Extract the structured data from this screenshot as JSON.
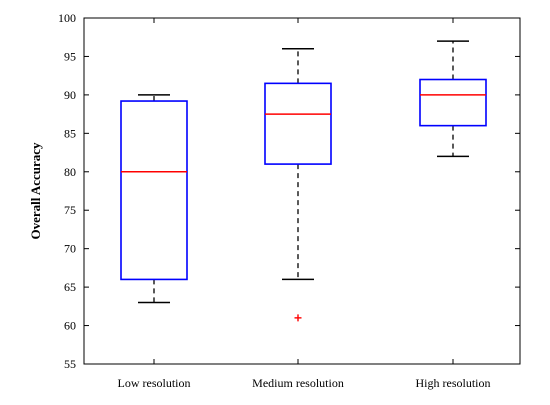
{
  "chart_data": {
    "type": "box",
    "title": "",
    "xlabel": "",
    "ylabel": "Overall Accuracy",
    "ylim": [
      55,
      100
    ],
    "yticks": [
      55,
      60,
      65,
      70,
      75,
      80,
      85,
      90,
      95,
      100
    ],
    "categories": [
      "Low resolution",
      "Medium resolution",
      "High resolution"
    ],
    "boxes": [
      {
        "whisker_low": 63,
        "q1": 66,
        "median": 80,
        "q3": 89.2,
        "whisker_high": 90,
        "outliers": []
      },
      {
        "whisker_low": 66,
        "q1": 81,
        "median": 87.5,
        "q3": 91.5,
        "whisker_high": 96,
        "outliers": [
          61
        ]
      },
      {
        "whisker_low": 82,
        "q1": 86,
        "median": 90,
        "q3": 92,
        "whisker_high": 97,
        "outliers": []
      }
    ],
    "colors": {
      "box": "#0000ff",
      "median": "#ff0000",
      "whisker": "#000000",
      "outlier": "#ff0000"
    },
    "grid": false
  }
}
